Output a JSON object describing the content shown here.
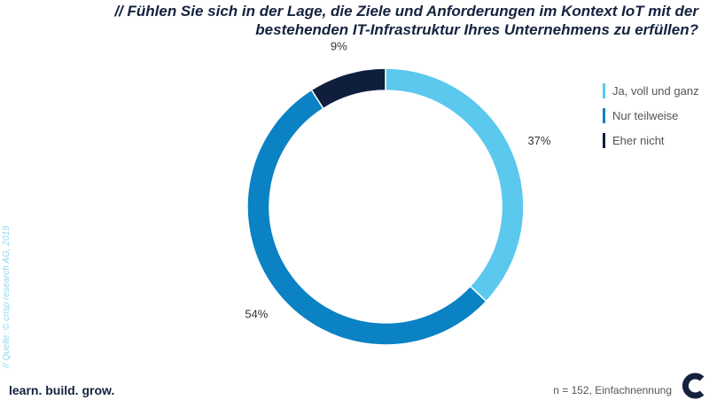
{
  "chart_data": {
    "type": "pie",
    "variant": "donut",
    "title": "// Fühlen Sie sich in der Lage, die Ziele und Anforderungen im Kontext IoT mit der bestehenden IT-Infrastruktur Ihres Unternehmens zu erfüllen?",
    "categories": [
      "Ja, voll und ganz",
      "Nur teilweise",
      "Eher nicht"
    ],
    "values": [
      37,
      54,
      9
    ],
    "data_labels": [
      "37%",
      "54%",
      "9%"
    ],
    "colors": [
      "#5bc8ee",
      "#0a82c4",
      "#0f1e3d"
    ],
    "legend_position": "right"
  },
  "footer": {
    "source": "// Quelle: © crisp research AG, 2019",
    "slogan": "learn. build. grow.",
    "note": "n = 152, Einfachnennung"
  }
}
